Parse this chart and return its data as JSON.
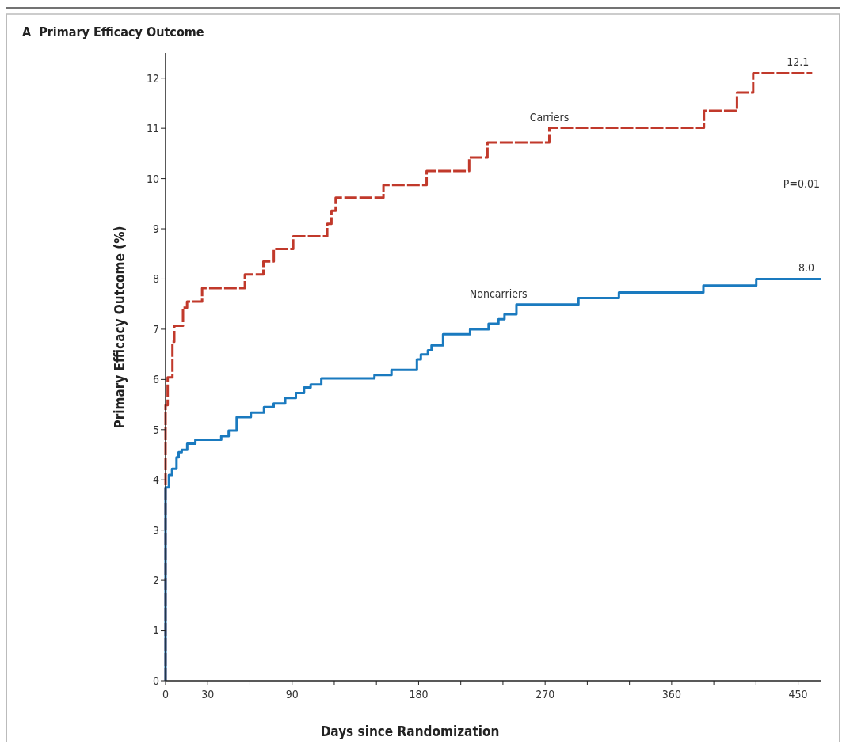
{
  "chart_data": {
    "type": "step",
    "title": "A  Primary Efficacy Outcome",
    "xlabel": "Days since Randomization",
    "ylabel": "Primary Efficacy Outcome (%)",
    "xlim": [
      0,
      466
    ],
    "ylim": [
      0,
      12.5
    ],
    "xticks": [
      0,
      30,
      {
        "value": 60,
        "label": null
      },
      90,
      {
        "value": 120,
        "label": null
      },
      {
        "value": 150,
        "label": null
      },
      180,
      {
        "value": 210,
        "label": null
      },
      {
        "value": 240,
        "label": null
      },
      270,
      {
        "value": 300,
        "label": null
      },
      {
        "value": 330,
        "label": null
      },
      360,
      {
        "value": 390,
        "label": null
      },
      {
        "value": 420,
        "label": null
      },
      450
    ],
    "yticks": [
      0,
      1,
      2,
      3,
      4,
      5,
      6,
      7,
      8,
      9,
      10,
      11,
      12
    ],
    "grid": false,
    "marker": "none",
    "annotations": [
      "P=0.01"
    ],
    "series": [
      {
        "name": "Carriers",
        "color": "#c1392b",
        "line_style": "dashed",
        "x": [
          0,
          0,
          1.5,
          4.9,
          6.2,
          12.4,
          15.3,
          26,
          56.4,
          69.6,
          77,
          90.8,
          115,
          118,
          121,
          155,
          185.7,
          216,
          229,
          273,
          383,
          406.5,
          418,
          460
        ],
        "values": [
          0,
          5.49,
          6.04,
          6.75,
          7.07,
          7.43,
          7.55,
          7.82,
          8.09,
          8.35,
          8.6,
          8.85,
          9.1,
          9.36,
          9.62,
          9.87,
          10.15,
          10.42,
          10.72,
          11.01,
          11.35,
          11.71,
          12.1,
          12.1
        ],
        "value_labels": [
          null,
          null,
          null,
          null,
          null,
          null,
          null,
          null,
          null,
          null,
          null,
          null,
          null,
          null,
          null,
          null,
          null,
          null,
          null,
          null,
          null,
          null,
          null,
          "12.1"
        ]
      },
      {
        "name": "Noncarriers",
        "color": "#1a7abf",
        "line_style": "solid",
        "x": [
          0,
          0,
          2.4,
          4.6,
          7.8,
          9.3,
          11.5,
          15.4,
          21.2,
          39.6,
          44.9,
          50.6,
          60.7,
          70,
          76.9,
          85.1,
          92.7,
          98.5,
          103.2,
          110.8,
          148.6,
          160.7,
          178.8,
          181.6,
          186.6,
          189.2,
          197.4,
          216.6,
          229.8,
          236.8,
          241.1,
          249.6,
          293.7,
          322.5,
          382.6,
          420.2,
          466
        ],
        "values": [
          0,
          3.85,
          4.1,
          4.22,
          4.45,
          4.55,
          4.6,
          4.72,
          4.8,
          4.87,
          4.98,
          5.25,
          5.34,
          5.45,
          5.52,
          5.63,
          5.73,
          5.84,
          5.9,
          6.02,
          6.09,
          6.19,
          6.4,
          6.5,
          6.58,
          6.68,
          6.9,
          7.0,
          7.11,
          7.2,
          7.3,
          7.49,
          7.62,
          7.73,
          7.87,
          8.0,
          8.0
        ],
        "value_labels": [
          null,
          null,
          null,
          null,
          null,
          null,
          null,
          null,
          null,
          null,
          null,
          null,
          null,
          null,
          null,
          null,
          null,
          null,
          null,
          null,
          null,
          null,
          null,
          null,
          null,
          null,
          null,
          null,
          null,
          null,
          null,
          null,
          null,
          null,
          null,
          null,
          "8.0"
        ]
      }
    ]
  }
}
